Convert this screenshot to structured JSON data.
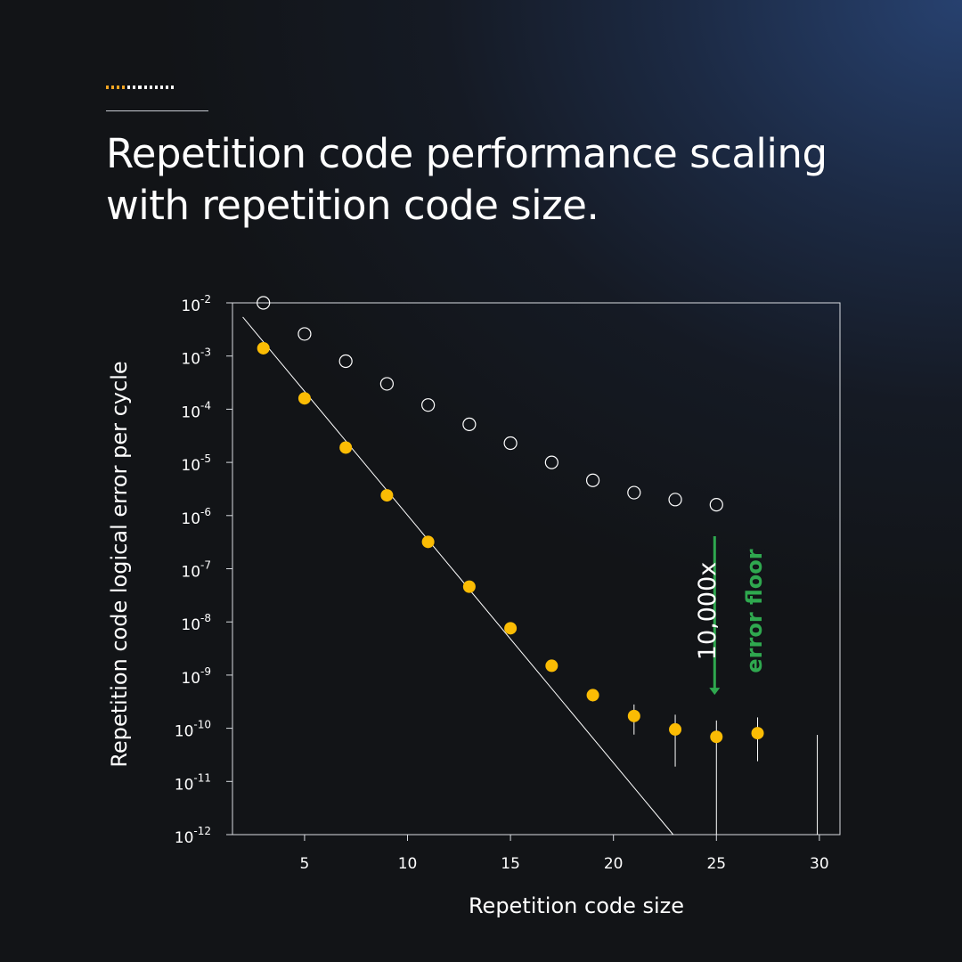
{
  "header": {
    "accent_colors": [
      "#f5a623",
      "#f5a623",
      "#f5a623",
      "#f5a623",
      "#ffffff",
      "#ffffff",
      "#ffffff",
      "#ffffff",
      "#ffffff",
      "#ffffff",
      "#ffffff",
      "#ffffff",
      "#ffffff"
    ],
    "title": "Repetition code performance scaling with repetition code size."
  },
  "chart_data": {
    "type": "scatter",
    "title": "",
    "xlabel": "Repetition code size",
    "ylabel": "Repetition code logical error per cycle",
    "x_scale": "linear",
    "y_scale": "log",
    "xlim": [
      1.5,
      31
    ],
    "ylim": [
      1e-12,
      0.01
    ],
    "x_ticks": [
      "5",
      "10",
      "15",
      "20",
      "25",
      "30"
    ],
    "y_ticks": [
      {
        "base": "10",
        "exp": "-12"
      },
      {
        "base": "10",
        "exp": "-11"
      },
      {
        "base": "10",
        "exp": "-10"
      },
      {
        "base": "10",
        "exp": "-9"
      },
      {
        "base": "10",
        "exp": "-8"
      },
      {
        "base": "10",
        "exp": "-7"
      },
      {
        "base": "10",
        "exp": "-6"
      },
      {
        "base": "10",
        "exp": "-5"
      },
      {
        "base": "10",
        "exp": "-4"
      },
      {
        "base": "10",
        "exp": "-3"
      },
      {
        "base": "10",
        "exp": "-2"
      }
    ],
    "grid": false,
    "series": [
      {
        "style": "open-circle",
        "color": "#ffffff",
        "x": [
          3,
          5,
          7,
          9,
          11,
          13,
          15,
          17,
          19,
          21,
          23,
          25
        ],
        "y": [
          0.01,
          0.0026,
          0.0008,
          0.0003,
          0.00012,
          5.2e-05,
          2.3e-05,
          1e-05,
          4.6e-06,
          2.7e-06,
          2e-06,
          1.6e-06
        ]
      },
      {
        "style": "filled-circle",
        "color": "#fbbc04",
        "x": [
          3,
          5,
          7,
          9,
          11,
          13,
          15,
          17,
          19,
          21,
          23,
          25,
          27
        ],
        "y": [
          0.0014,
          0.00016,
          1.9e-05,
          2.4e-06,
          3.2e-07,
          4.6e-08,
          7.6e-09,
          1.5e-09,
          4.2e-10,
          1.7e-10,
          9.5e-11,
          6.9e-11,
          8.1e-11
        ],
        "err_low": [
          null,
          null,
          null,
          null,
          null,
          null,
          null,
          null,
          3.2e-10,
          7.6e-11,
          1.9e-11,
          1e-12,
          2.4e-11
        ],
        "err_high": [
          null,
          null,
          null,
          null,
          null,
          null,
          null,
          null,
          null,
          2.8e-10,
          1.8e-10,
          1.4e-10,
          1.6e-10
        ]
      },
      {
        "style": "error-bar-only",
        "color": "#ffffff",
        "x": [
          29.9
        ],
        "err_low": [
          1e-12
        ],
        "err_high": [
          7.5e-11
        ]
      }
    ],
    "fit_line": {
      "color": "#ffffff",
      "points": [
        [
          2.0,
          0.0054
        ],
        [
          22.9,
          1e-12
        ]
      ]
    },
    "annotations": {
      "ratio_label": "10,000x",
      "floor_label": "error floor",
      "floor_color": "#2fa84f",
      "arrow_x": 25,
      "arrow_from": 1.3e-06,
      "arrow_to": 3.5e-10
    }
  }
}
